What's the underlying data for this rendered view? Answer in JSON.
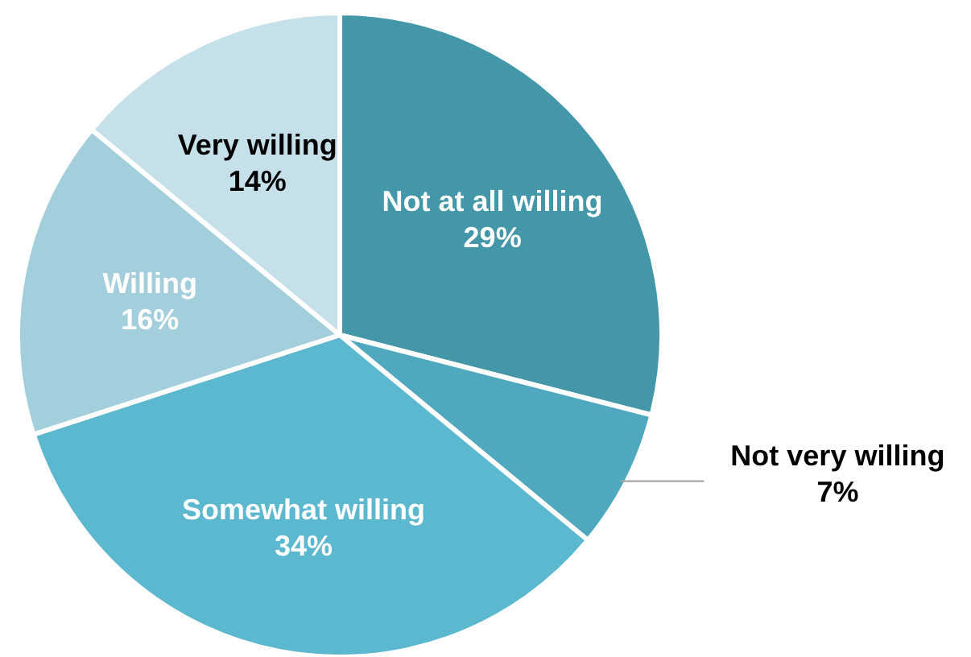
{
  "chart_data": {
    "type": "pie",
    "categories": [
      "Not at all willing",
      "Not very willing",
      "Somewhat willing",
      "Willing",
      "Very willing"
    ],
    "values": [
      29,
      7,
      34,
      16,
      14
    ],
    "value_labels": [
      "29%",
      "7%",
      "34%",
      "16%",
      "14%"
    ],
    "colors": [
      "#4397a8",
      "#4fa8bd",
      "#5bb8cf",
      "#a3cfdd",
      "#c6e0ea"
    ]
  }
}
